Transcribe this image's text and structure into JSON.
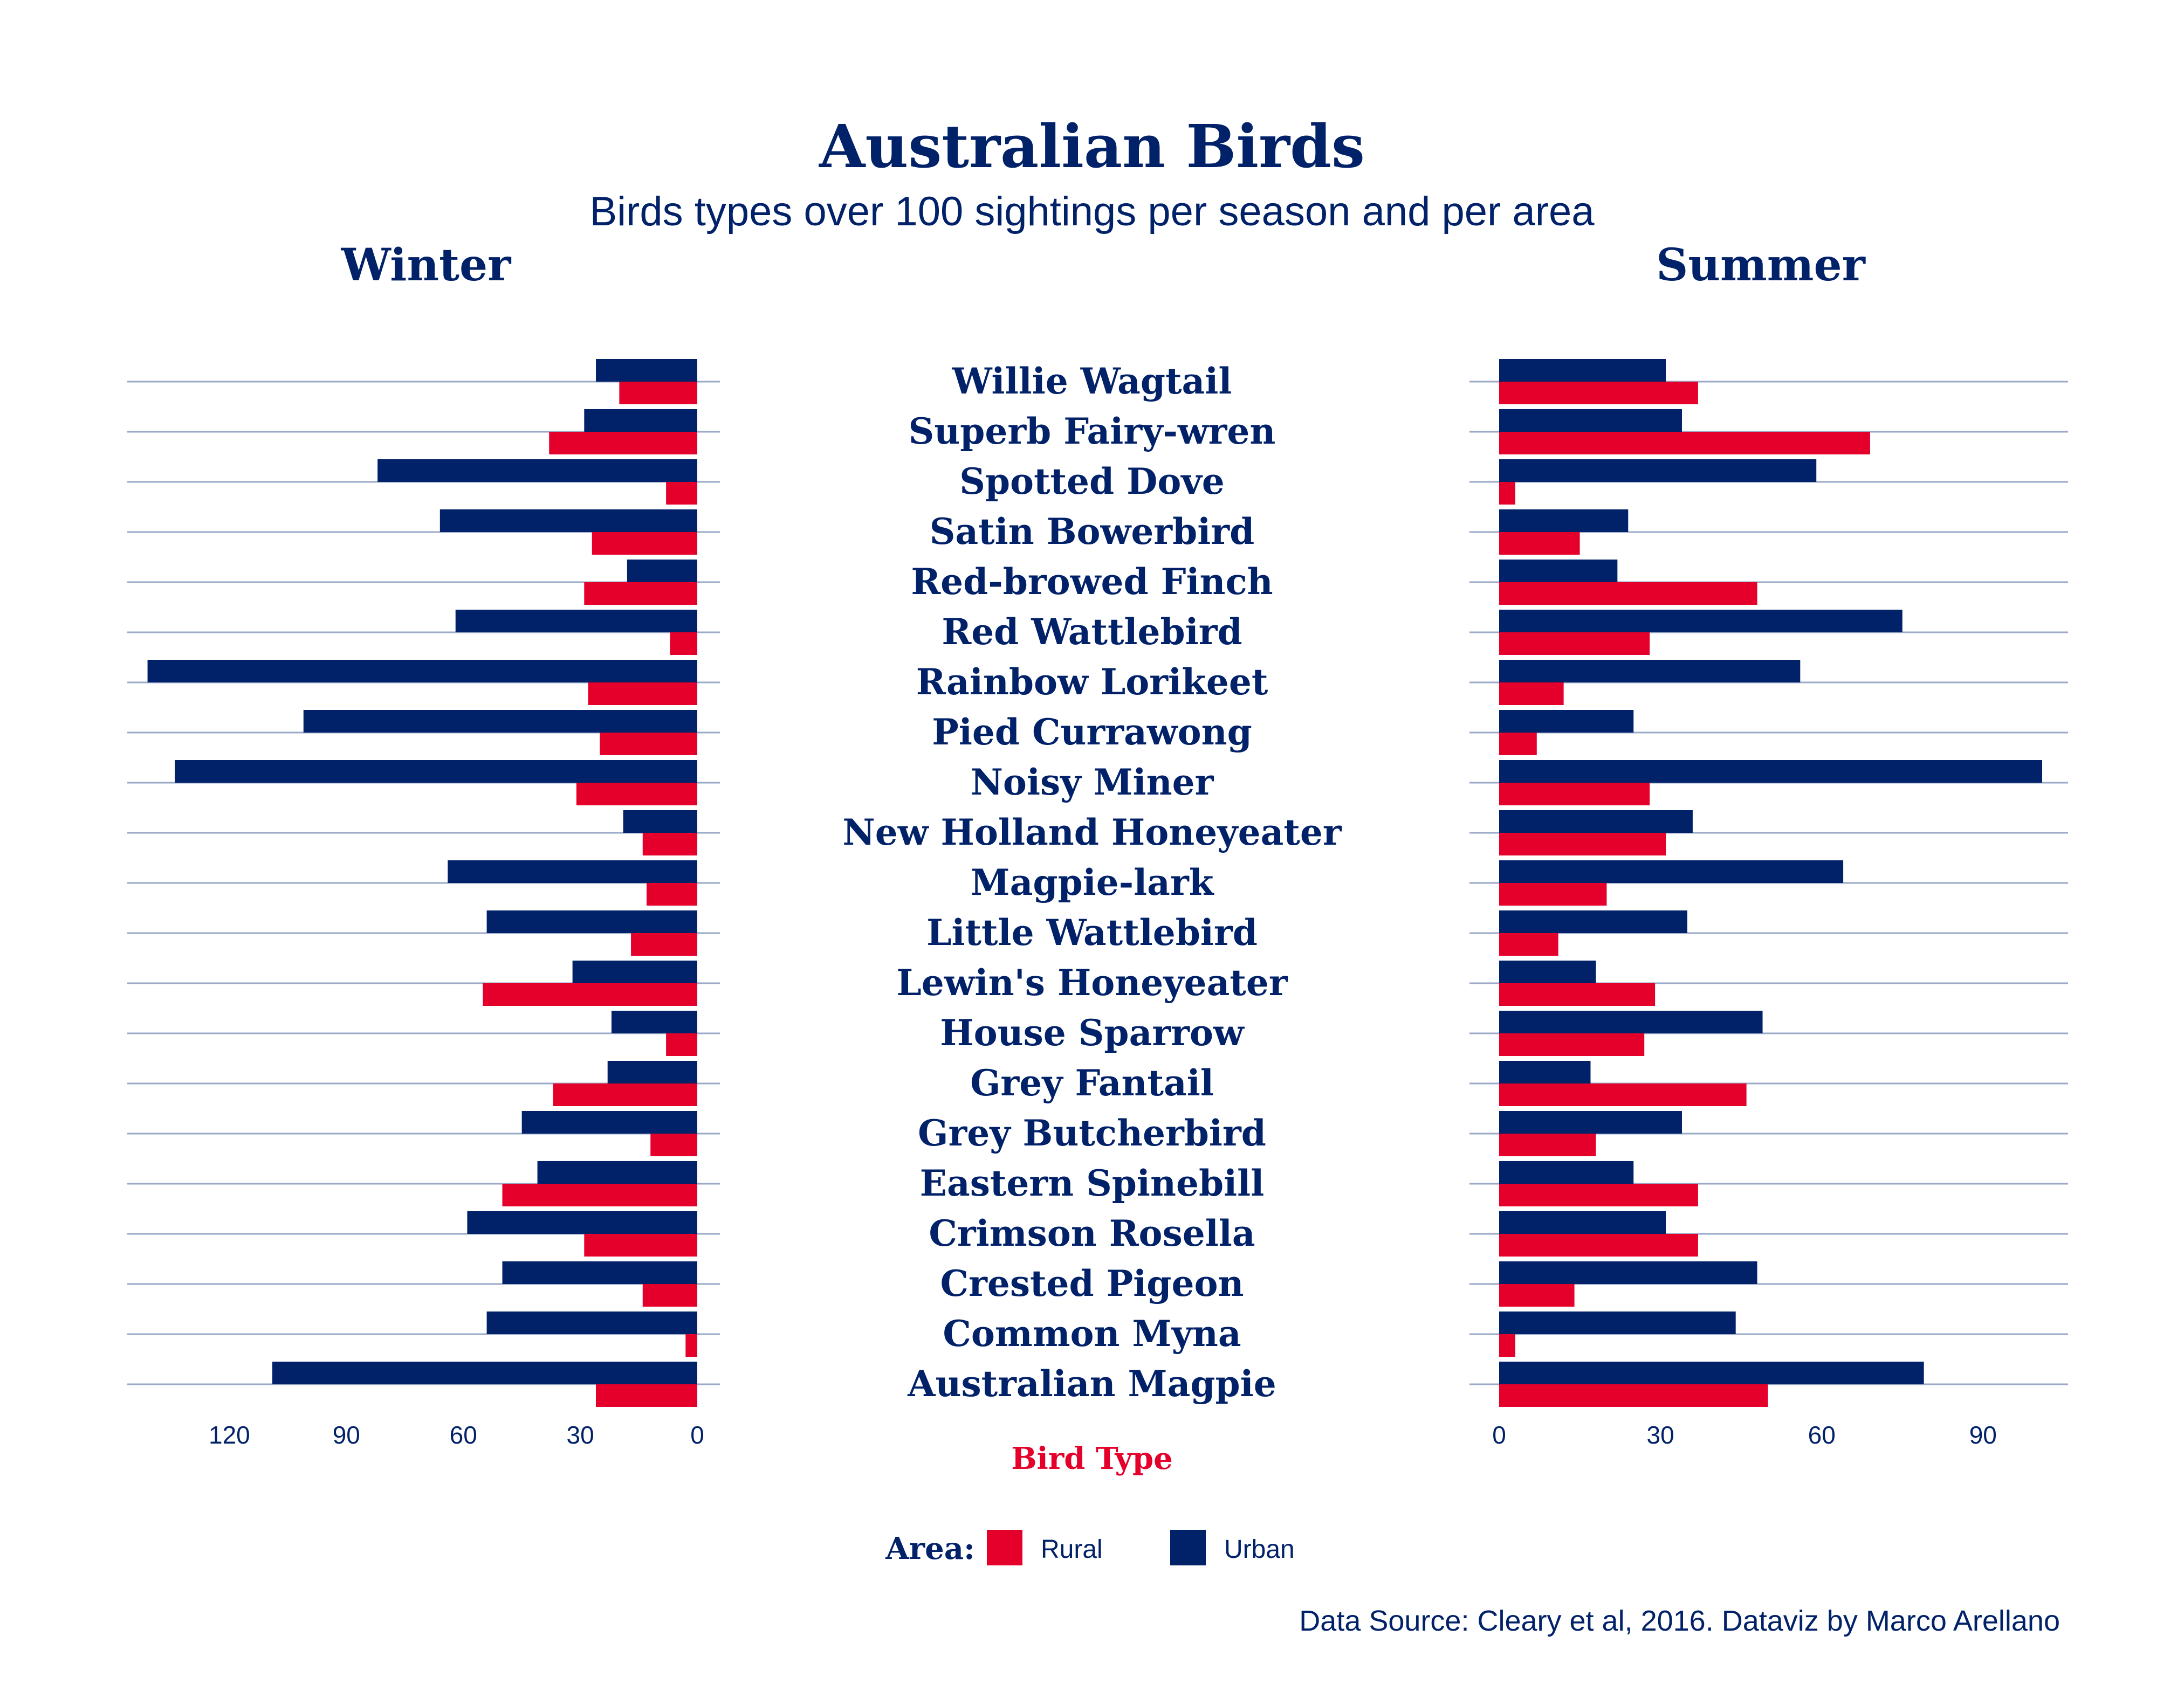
{
  "title": "Australian Birds",
  "subtitle": "Birds types over 100 sightings per season and per area",
  "x_axis_label": "Bird Type",
  "legend": {
    "title": "Area:",
    "items": [
      {
        "label": "Rural",
        "color": "#E4002B"
      },
      {
        "label": "Urban",
        "color": "#012169"
      }
    ]
  },
  "caption": "Data Source: Cleary et al, 2016. Dataviz by Marco Arellano",
  "colors": {
    "text": "#012169",
    "rural": "#E4002B",
    "urban": "#012169",
    "gridline": "#9AA9C8",
    "axis_title": "#E4002B"
  },
  "chart_data": [
    {
      "type": "bar",
      "orientation": "horizontal",
      "panel": "Winter",
      "direction": "reversed",
      "categories": [
        "Willie Wagtail",
        "Superb Fairy-wren",
        "Spotted Dove",
        "Satin Bowerbird",
        "Red-browed Finch",
        "Red Wattlebird",
        "Rainbow Lorikeet",
        "Pied Currawong",
        "Noisy Miner",
        "New Holland Honeyeater",
        "Magpie-lark",
        "Little Wattlebird",
        "Lewin's Honeyeater",
        "House Sparrow",
        "Grey Fantail",
        "Grey Butcherbird",
        "Eastern Spinebill",
        "Crimson Rosella",
        "Crested Pigeon",
        "Common Myna",
        "Australian Magpie"
      ],
      "series": [
        {
          "name": "Urban",
          "values": [
            26,
            29,
            82,
            66,
            18,
            62,
            141,
            101,
            134,
            19,
            64,
            54,
            32,
            22,
            23,
            45,
            41,
            59,
            50,
            54,
            109
          ]
        },
        {
          "name": "Rural",
          "values": [
            20,
            38,
            8,
            27,
            29,
            7,
            28,
            25,
            31,
            14,
            13,
            17,
            55,
            8,
            37,
            12,
            50,
            29,
            14,
            3,
            26
          ]
        }
      ],
      "xlim": [
        0,
        148
      ],
      "ticks": [
        0,
        30,
        60,
        90,
        120
      ],
      "grid": "horizontal"
    },
    {
      "type": "bar",
      "orientation": "horizontal",
      "panel": "Summer",
      "categories": [
        "Willie Wagtail",
        "Superb Fairy-wren",
        "Spotted Dove",
        "Satin Bowerbird",
        "Red-browed Finch",
        "Red Wattlebird",
        "Rainbow Lorikeet",
        "Pied Currawong",
        "Noisy Miner",
        "New Holland Honeyeater",
        "Magpie-lark",
        "Little Wattlebird",
        "Lewin's Honeyeater",
        "House Sparrow",
        "Grey Fantail",
        "Grey Butcherbird",
        "Eastern Spinebill",
        "Crimson Rosella",
        "Crested Pigeon",
        "Common Myna",
        "Australian Magpie"
      ],
      "series": [
        {
          "name": "Urban",
          "values": [
            31,
            34,
            59,
            24,
            22,
            75,
            56,
            25,
            101,
            36,
            64,
            35,
            18,
            49,
            17,
            34,
            25,
            31,
            48,
            44,
            79
          ]
        },
        {
          "name": "Rural",
          "values": [
            37,
            69,
            3,
            15,
            48,
            28,
            12,
            7,
            28,
            31,
            20,
            11,
            29,
            27,
            46,
            18,
            37,
            37,
            14,
            3,
            50
          ]
        }
      ],
      "xlim": [
        0,
        106
      ],
      "ticks": [
        0,
        30,
        60,
        90
      ],
      "grid": "horizontal"
    }
  ]
}
